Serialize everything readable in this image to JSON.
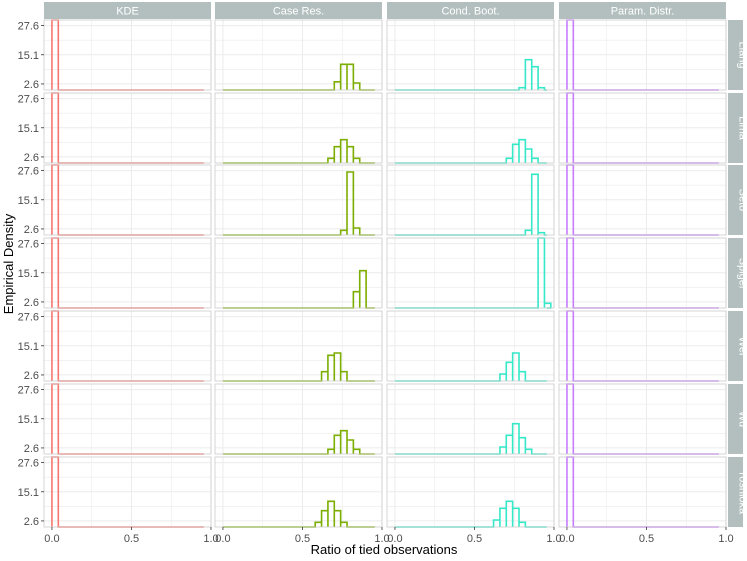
{
  "chart_data": {
    "type": "histogram-facet-grid",
    "xlabel": "Ratio of tied observations",
    "ylabel": "Empirical Density",
    "columns": [
      "KDE",
      "Case Res.",
      "Cond. Boot.",
      "Param. Distr."
    ],
    "rows": [
      "Liang",
      "Lima",
      "Seto",
      "Spigel",
      "Wei",
      "Wu",
      "Yoshioka"
    ],
    "x_ticks": [
      0.0,
      0.5,
      1.0
    ],
    "x_tick_labels": [
      "0.0",
      "0.5",
      "1.0"
    ],
    "y_ticks": [
      2.6,
      15.1,
      27.6
    ],
    "y_tick_labels": [
      "2.6",
      "15.1",
      "27.6"
    ],
    "xlim": [
      -0.05,
      1.0
    ],
    "ylim": [
      0,
      30
    ],
    "grid": true,
    "colors": {
      "KDE": "#f8766d",
      "Case Res.": "#7cae00",
      "Cond. Boot.": "#35e8c8",
      "Param. Distr.": "#c77cff",
      "strip_bg": "#b3bfbf",
      "panel_border": "#cccccc",
      "grid": "#ebebeb"
    },
    "series": {
      "KDE": {
        "Liang": [
          [
            0,
            30
          ]
        ],
        "Lima": [
          [
            0,
            30
          ]
        ],
        "Seto": [
          [
            0,
            30
          ]
        ],
        "Spigel": [
          [
            0,
            30
          ]
        ],
        "Wei": [
          [
            0,
            30
          ]
        ],
        "Wu": [
          [
            0,
            30
          ]
        ],
        "Yoshioka": [
          [
            0,
            30
          ]
        ]
      },
      "Param. Distr.": {
        "Liang": [
          [
            0,
            30
          ]
        ],
        "Lima": [
          [
            0,
            30
          ]
        ],
        "Seto": [
          [
            0,
            30
          ]
        ],
        "Spigel": [
          [
            0,
            30
          ]
        ],
        "Wei": [
          [
            0,
            30
          ]
        ],
        "Wu": [
          [
            0,
            30
          ]
        ],
        "Yoshioka": [
          [
            0,
            30
          ]
        ]
      },
      "Case Res.": {
        "Liang": [
          [
            0.7,
            3.5
          ],
          [
            0.74,
            11
          ],
          [
            0.78,
            11
          ],
          [
            0.82,
            3
          ]
        ],
        "Lima": [
          [
            0.66,
            2
          ],
          [
            0.7,
            7
          ],
          [
            0.74,
            10
          ],
          [
            0.78,
            7
          ],
          [
            0.82,
            2
          ]
        ],
        "Seto": [
          [
            0.74,
            2
          ],
          [
            0.78,
            27
          ],
          [
            0.82,
            3
          ]
        ],
        "Spigel": [
          [
            0.82,
            7
          ],
          [
            0.86,
            16
          ]
        ],
        "Wei": [
          [
            0.62,
            4
          ],
          [
            0.66,
            11
          ],
          [
            0.7,
            12
          ],
          [
            0.74,
            4
          ]
        ],
        "Wu": [
          [
            0.66,
            2
          ],
          [
            0.7,
            8
          ],
          [
            0.74,
            10
          ],
          [
            0.78,
            6
          ],
          [
            0.82,
            2
          ]
        ],
        "Yoshioka": [
          [
            0.58,
            2
          ],
          [
            0.62,
            7
          ],
          [
            0.66,
            11
          ],
          [
            0.7,
            7
          ],
          [
            0.74,
            2
          ]
        ]
      },
      "Cond. Boot.": {
        "Liang": [
          [
            0.78,
            1
          ],
          [
            0.82,
            13
          ],
          [
            0.86,
            10
          ],
          [
            0.9,
            1
          ]
        ],
        "Lima": [
          [
            0.7,
            2
          ],
          [
            0.74,
            8
          ],
          [
            0.78,
            10
          ],
          [
            0.82,
            6
          ],
          [
            0.86,
            2
          ]
        ],
        "Seto": [
          [
            0.82,
            2
          ],
          [
            0.86,
            26
          ],
          [
            0.9,
            1
          ]
        ],
        "Spigel": [
          [
            0.9,
            30
          ],
          [
            0.94,
            2
          ]
        ],
        "Wei": [
          [
            0.66,
            3
          ],
          [
            0.7,
            8
          ],
          [
            0.74,
            12
          ],
          [
            0.78,
            4
          ]
        ],
        "Wu": [
          [
            0.66,
            3
          ],
          [
            0.7,
            8
          ],
          [
            0.74,
            13
          ],
          [
            0.78,
            7
          ],
          [
            0.82,
            2
          ]
        ],
        "Yoshioka": [
          [
            0.62,
            3
          ],
          [
            0.66,
            8
          ],
          [
            0.7,
            11
          ],
          [
            0.74,
            8
          ],
          [
            0.78,
            2
          ]
        ]
      }
    }
  }
}
